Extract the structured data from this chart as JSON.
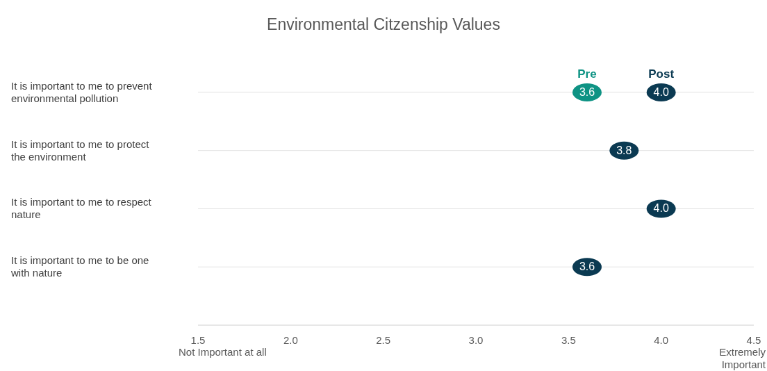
{
  "chart_data": {
    "type": "scatter",
    "title": "Environmental Citzenship Values",
    "categories": [
      "It is important to me to prevent environmental pollution",
      "It is important to me to protect the environment",
      "It is important to me to respect nature",
      "It is important to me to be one with nature"
    ],
    "orientation": "horizontal",
    "series": [
      {
        "name": "Pre",
        "color": "#0e9384",
        "values": [
          3.6,
          null,
          null,
          null
        ],
        "value_labels": [
          "3.6",
          null,
          null,
          null
        ]
      },
      {
        "name": "Post",
        "color": "#0b3a52",
        "values": [
          4.0,
          3.8,
          4.0,
          3.6
        ],
        "value_labels": [
          "4.0",
          "3.8",
          "4.0",
          "3.6"
        ]
      }
    ],
    "xlim": [
      1.5,
      4.5
    ],
    "xticks": [
      1.5,
      {
        "value": 2,
        "label": "2.0"
      },
      2.5,
      {
        "value": 3,
        "label": "3.0"
      },
      3.5,
      {
        "value": 4,
        "label": "4.0"
      },
      4.5
    ],
    "grid": "y",
    "marker": "circle",
    "annotations": [
      "Not Important at all",
      "Extremely Important"
    ]
  }
}
